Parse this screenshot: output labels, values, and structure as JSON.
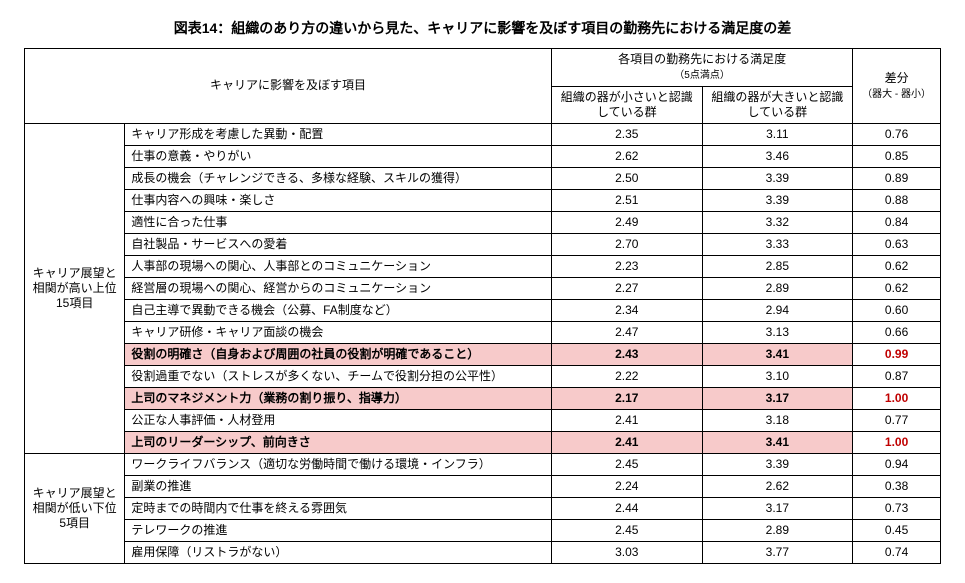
{
  "title": "図表14：組織のあり方の違いから見た、キャリアに影響を及ぼす項目の勤務先における満足度の差",
  "header": {
    "items_label": "キャリアに影響を及ぼす項目",
    "sat_group_label": "各項目の勤務先における満足度",
    "sat_group_note": "（5点満点）",
    "col_small": "組織の器が小さいと認識している群",
    "col_large": "組織の器が大きいと認識している群",
    "diff_label": "差分",
    "diff_note": "（器大 - 器小）"
  },
  "groups": [
    {
      "label": "キャリア展望と相関が高い上位15項目",
      "rows": [
        {
          "item": "キャリア形成を考慮した異動・配置",
          "small": "2.35",
          "large": "3.11",
          "diff": "0.76",
          "hi": false
        },
        {
          "item": "仕事の意義・やりがい",
          "small": "2.62",
          "large": "3.46",
          "diff": "0.85",
          "hi": false
        },
        {
          "item": "成長の機会（チャレンジできる、多様な経験、スキルの獲得）",
          "small": "2.50",
          "large": "3.39",
          "diff": "0.89",
          "hi": false
        },
        {
          "item": "仕事内容への興味・楽しさ",
          "small": "2.51",
          "large": "3.39",
          "diff": "0.88",
          "hi": false
        },
        {
          "item": "適性に合った仕事",
          "small": "2.49",
          "large": "3.32",
          "diff": "0.84",
          "hi": false
        },
        {
          "item": "自社製品・サービスへの愛着",
          "small": "2.70",
          "large": "3.33",
          "diff": "0.63",
          "hi": false
        },
        {
          "item": "人事部の現場への関心、人事部とのコミュニケーション",
          "small": "2.23",
          "large": "2.85",
          "diff": "0.62",
          "hi": false
        },
        {
          "item": "経営層の現場への関心、経営からのコミュニケーション",
          "small": "2.27",
          "large": "2.89",
          "diff": "0.62",
          "hi": false
        },
        {
          "item": "自己主導で異動できる機会（公募、FA制度など）",
          "small": "2.34",
          "large": "2.94",
          "diff": "0.60",
          "hi": false
        },
        {
          "item": "キャリア研修・キャリア面談の機会",
          "small": "2.47",
          "large": "3.13",
          "diff": "0.66",
          "hi": false
        },
        {
          "item": "役割の明確さ（自身および周囲の社員の役割が明確であること）",
          "small": "2.43",
          "large": "3.41",
          "diff": "0.99",
          "hi": true
        },
        {
          "item": "役割過重でない（ストレスが多くない、チームで役割分担の公平性）",
          "small": "2.22",
          "large": "3.10",
          "diff": "0.87",
          "hi": false
        },
        {
          "item": "上司のマネジメント力（業務の割り振り、指導力）",
          "small": "2.17",
          "large": "3.17",
          "diff": "1.00",
          "hi": true
        },
        {
          "item": "公正な人事評価・人材登用",
          "small": "2.41",
          "large": "3.18",
          "diff": "0.77",
          "hi": false
        },
        {
          "item": "上司のリーダーシップ、前向きさ",
          "small": "2.41",
          "large": "3.41",
          "diff": "1.00",
          "hi": true
        }
      ]
    },
    {
      "label": "キャリア展望と相関が低い下位5項目",
      "rows": [
        {
          "item": "ワークライフバランス（適切な労働時間で働ける環境・インフラ）",
          "small": "2.45",
          "large": "3.39",
          "diff": "0.94",
          "hi": false
        },
        {
          "item": "副業の推進",
          "small": "2.24",
          "large": "2.62",
          "diff": "0.38",
          "hi": false
        },
        {
          "item": "定時までの時間内で仕事を終える雰囲気",
          "small": "2.44",
          "large": "3.17",
          "diff": "0.73",
          "hi": false
        },
        {
          "item": "テレワークの推進",
          "small": "2.45",
          "large": "2.89",
          "diff": "0.45",
          "hi": false
        },
        {
          "item": "雇用保障（リストラがない）",
          "small": "3.03",
          "large": "3.77",
          "diff": "0.74",
          "hi": false
        }
      ]
    }
  ]
}
